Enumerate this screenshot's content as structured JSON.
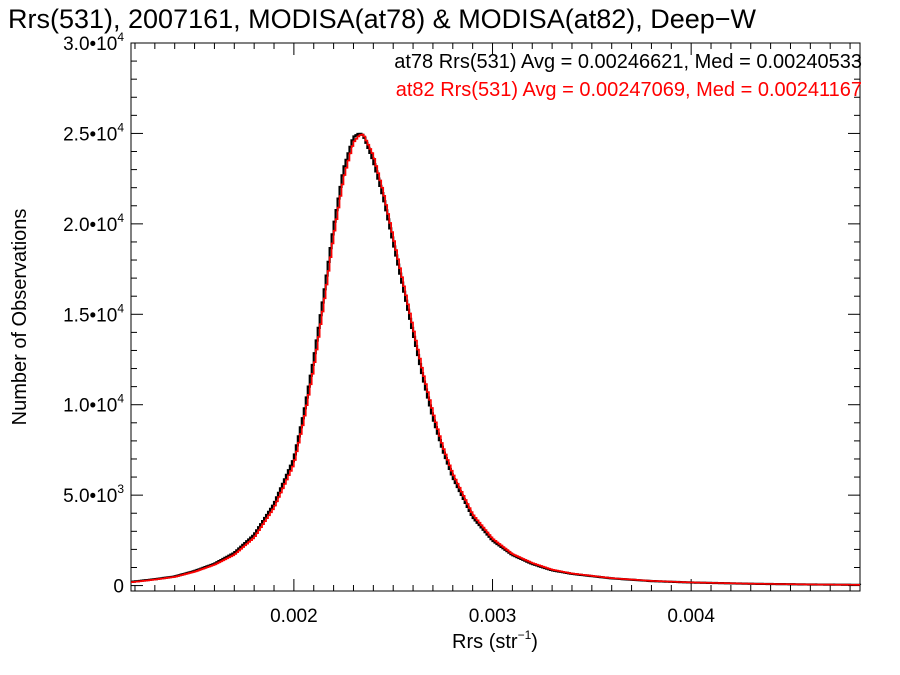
{
  "chart_data": {
    "type": "line",
    "title": "Rrs(531), 2007161, MODISA(at78) & MODISA(at82), Deep−W",
    "xlabel": "Rrs (str",
    "xlabel_exponent": "−1",
    "xlabel_close": ")",
    "ylabel": "Number of Observations",
    "xlim": [
      0.00118,
      0.00485
    ],
    "ylim": [
      -300,
      30000
    ],
    "x_ticks": [
      0.002,
      0.003,
      0.004
    ],
    "x_tick_labels": [
      "0.002",
      "0.003",
      "0.004"
    ],
    "y_ticks": [
      0,
      5000,
      10000,
      15000,
      20000,
      25000,
      30000
    ],
    "y_tick_labels": [
      {
        "mantissa": "0",
        "exp": ""
      },
      {
        "mantissa": "5.0•10",
        "exp": "3"
      },
      {
        "mantissa": "1.0•10",
        "exp": "4"
      },
      {
        "mantissa": "1.5•10",
        "exp": "4"
      },
      {
        "mantissa": "2.0•10",
        "exp": "4"
      },
      {
        "mantissa": "2.5•10",
        "exp": "4"
      },
      {
        "mantissa": "3.0•10",
        "exp": "4"
      }
    ],
    "grid": false,
    "legend_position": "top-right",
    "series": [
      {
        "name": "at78",
        "label": "at78 Rrs(531) Avg = 0.00246621, Med = 0.00240533",
        "color": "#000000",
        "x": [
          0.00118,
          0.0013,
          0.0014,
          0.0015,
          0.0016,
          0.0017,
          0.0018,
          0.0019,
          0.002,
          0.00205,
          0.0021,
          0.00215,
          0.0022,
          0.00225,
          0.0023,
          0.00233,
          0.00235,
          0.0024,
          0.00245,
          0.0025,
          0.00255,
          0.0026,
          0.00265,
          0.0027,
          0.00275,
          0.0028,
          0.0029,
          0.003,
          0.0031,
          0.0032,
          0.0033,
          0.0034,
          0.0036,
          0.0038,
          0.004,
          0.0043,
          0.0046,
          0.00485
        ],
        "y": [
          200,
          350,
          500,
          800,
          1200,
          1800,
          2800,
          4500,
          7000,
          9500,
          12500,
          16000,
          19800,
          23000,
          24800,
          25000,
          24900,
          23500,
          21500,
          19000,
          16500,
          14000,
          11500,
          9300,
          7500,
          6000,
          3800,
          2500,
          1700,
          1200,
          850,
          650,
          400,
          250,
          170,
          100,
          60,
          40
        ]
      },
      {
        "name": "at82",
        "label": "at82 Rrs(531) Avg = 0.00247069, Med = 0.00241167",
        "color": "#ff0000",
        "x": [
          0.00118,
          0.0013,
          0.0014,
          0.0015,
          0.0016,
          0.0017,
          0.0018,
          0.0019,
          0.002,
          0.00205,
          0.0021,
          0.00215,
          0.0022,
          0.00225,
          0.0023,
          0.00233,
          0.00235,
          0.0024,
          0.00245,
          0.0025,
          0.00255,
          0.0026,
          0.00265,
          0.0027,
          0.00275,
          0.0028,
          0.0029,
          0.003,
          0.0031,
          0.0032,
          0.0033,
          0.0034,
          0.0036,
          0.0038,
          0.004,
          0.0043,
          0.0046,
          0.00485
        ],
        "y": [
          180,
          330,
          480,
          760,
          1150,
          1700,
          2650,
          4300,
          6700,
          9100,
          12000,
          15500,
          19300,
          22500,
          24500,
          24900,
          24950,
          23800,
          21800,
          19300,
          16800,
          14300,
          11800,
          9600,
          7700,
          6200,
          3950,
          2600,
          1750,
          1250,
          880,
          670,
          410,
          260,
          175,
          105,
          62,
          42
        ]
      }
    ]
  }
}
